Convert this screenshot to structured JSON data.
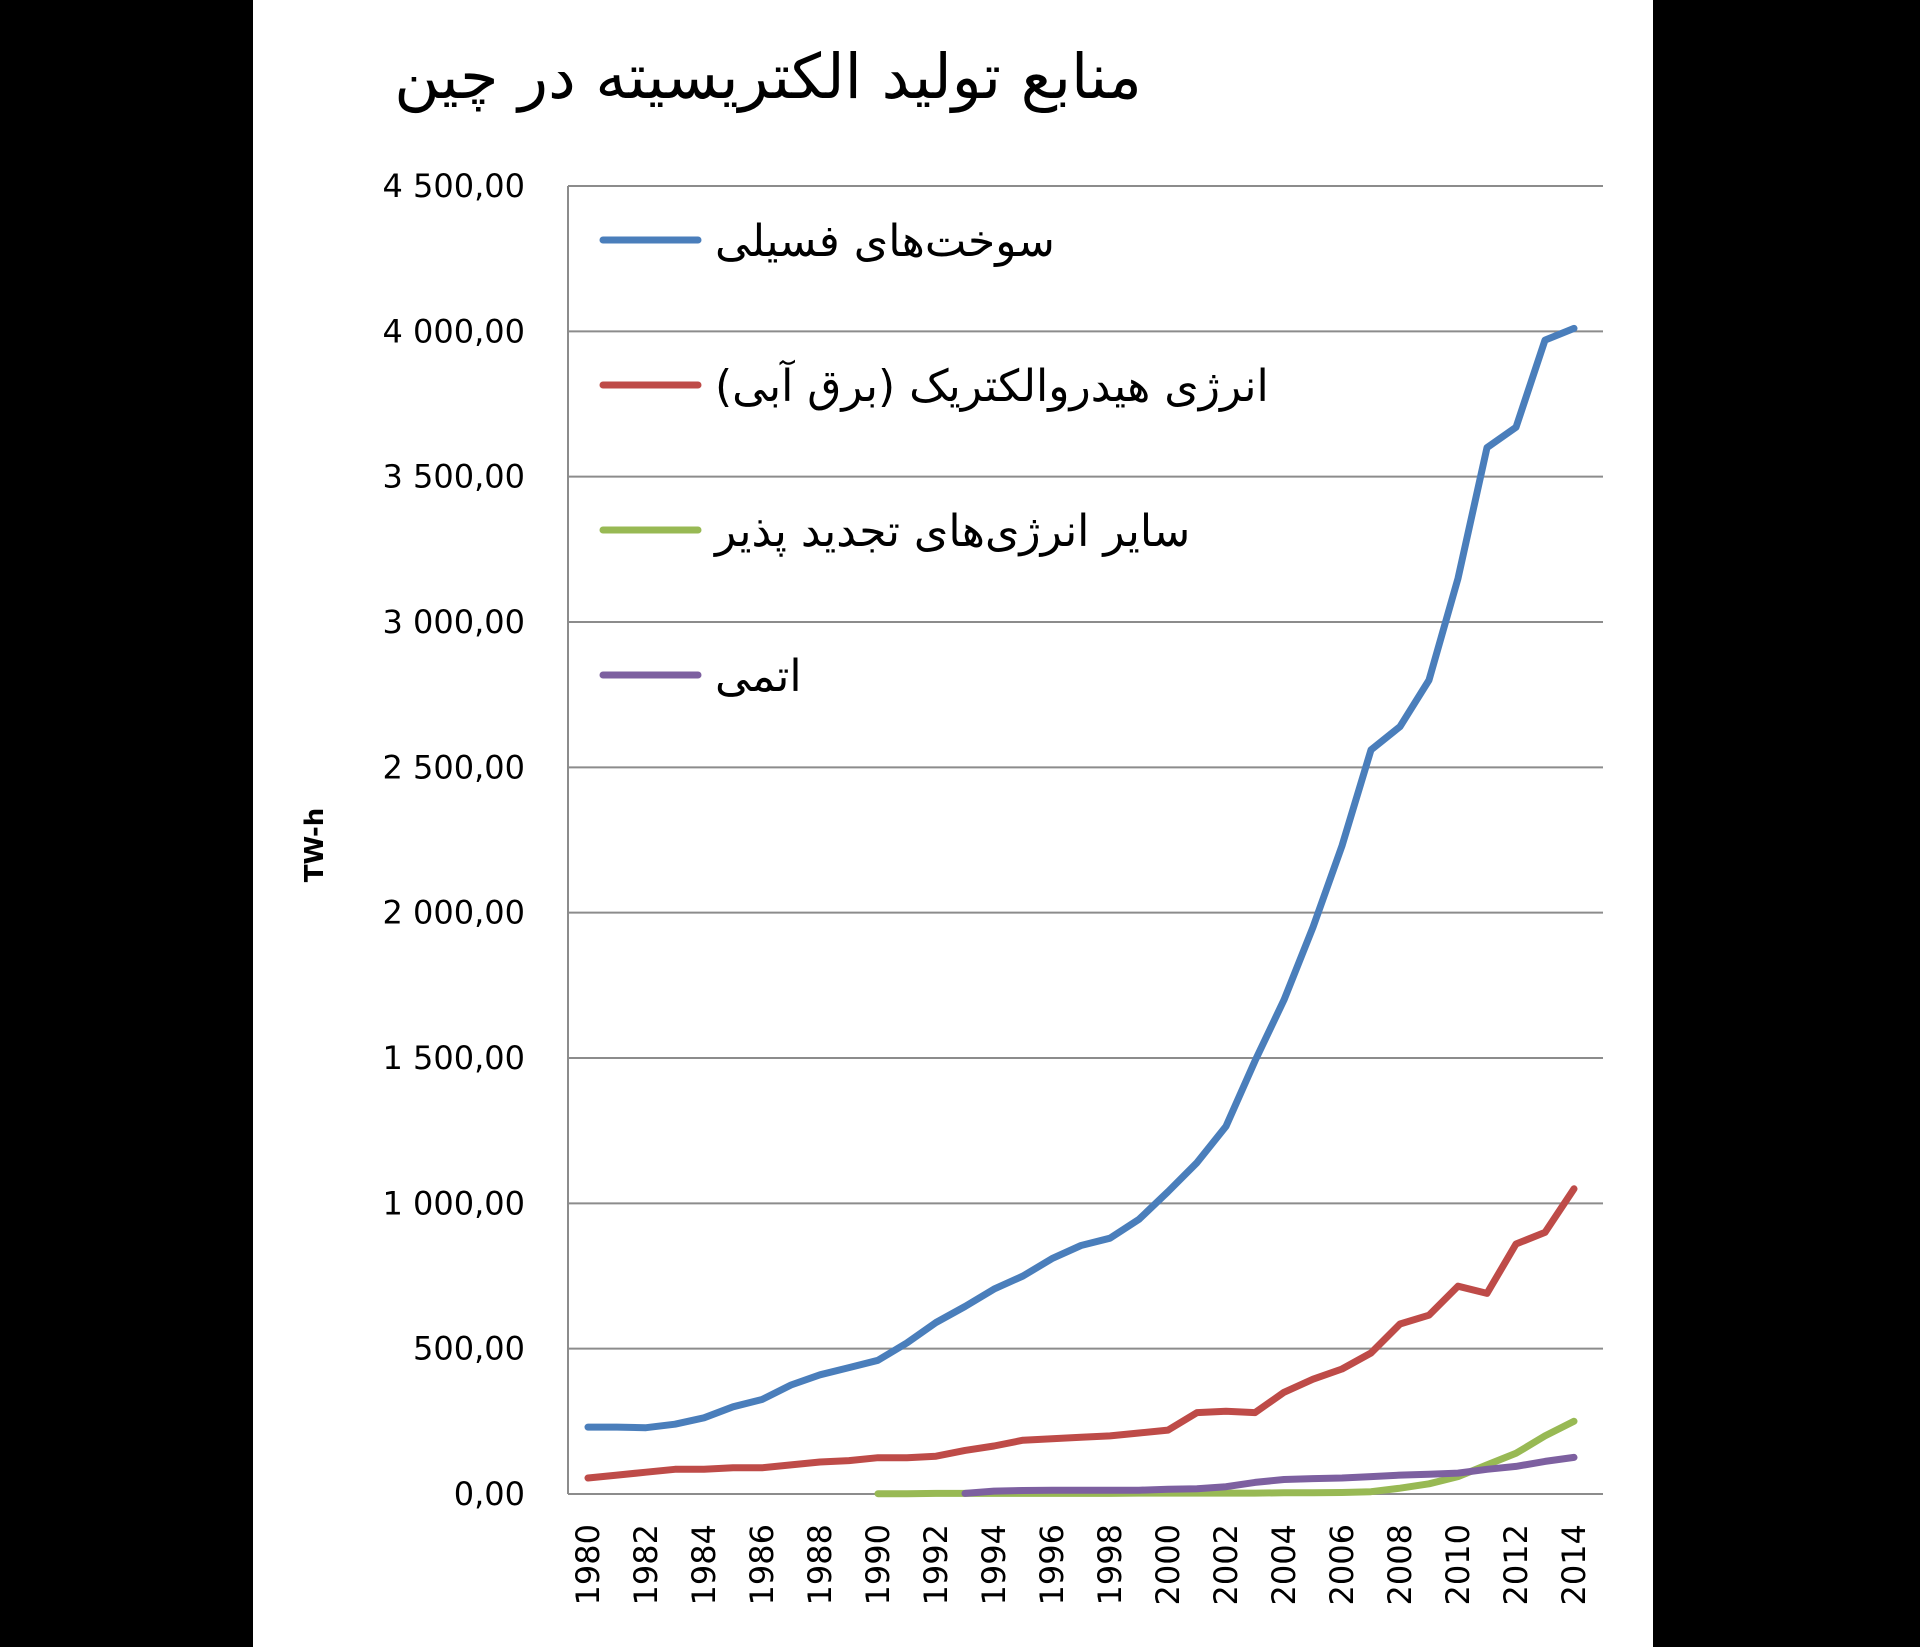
{
  "chart_data": {
    "type": "line",
    "title": "منابع تولید الکتریسیته در چین",
    "xlabel": "",
    "ylabel": "TW-h",
    "ylim": [
      0,
      4500
    ],
    "yticks": [
      0,
      500,
      1000,
      1500,
      2000,
      2500,
      3000,
      3500,
      4000,
      4500
    ],
    "ytick_labels": [
      "0,00",
      "500,00",
      "1 000,00",
      "1 500,00",
      "2 000,00",
      "2 500,00",
      "3 000,00",
      "3 500,00",
      "4 000,00",
      "4 500,00"
    ],
    "x": [
      1980,
      1981,
      1982,
      1983,
      1984,
      1985,
      1986,
      1987,
      1988,
      1989,
      1990,
      1991,
      1992,
      1993,
      1994,
      1995,
      1996,
      1997,
      1998,
      1999,
      2000,
      2001,
      2002,
      2003,
      2004,
      2005,
      2006,
      2007,
      2008,
      2009,
      2010,
      2011,
      2012,
      2013,
      2014
    ],
    "xtick_labels": [
      "1980",
      "1982",
      "1984",
      "1986",
      "1988",
      "1990",
      "1992",
      "1994",
      "1996",
      "1998",
      "2000",
      "2002",
      "2004",
      "2006",
      "2008",
      "2010",
      "2012",
      "2014"
    ],
    "grid": true,
    "legend_position": "top-left",
    "series": [
      {
        "name": "سوخت‌های فسیلی",
        "color": "#4a7ebb",
        "values": [
          230,
          230,
          228,
          240,
          262,
          300,
          325,
          375,
          410,
          435,
          460,
          520,
          590,
          645,
          705,
          750,
          810,
          855,
          880,
          945,
          1040,
          1140,
          1265,
          1490,
          1700,
          1950,
          2230,
          2560,
          2640,
          2800,
          3150,
          3600,
          3670,
          3970,
          4010
        ]
      },
      {
        "name": "انرژی هیدروالکتریک (برق آبی)",
        "color": "#be4b48",
        "values": [
          55,
          65,
          75,
          85,
          85,
          90,
          90,
          100,
          110,
          115,
          125,
          125,
          130,
          150,
          165,
          185,
          190,
          195,
          200,
          210,
          220,
          280,
          285,
          280,
          350,
          395,
          430,
          485,
          585,
          615,
          715,
          690,
          860,
          900,
          1050
        ]
      },
      {
        "name": "سایر انرژی‌های تجدید پذیر",
        "color": "#98b954",
        "values": [
          null,
          null,
          null,
          null,
          null,
          null,
          null,
          null,
          null,
          null,
          1,
          1,
          2,
          2,
          2,
          2,
          2,
          2,
          2,
          3,
          3,
          3,
          3,
          3,
          4,
          4,
          5,
          8,
          20,
          35,
          60,
          100,
          140,
          200,
          250
        ]
      },
      {
        "name": "اتمی",
        "color": "#7d60a0",
        "values": [
          null,
          null,
          null,
          null,
          null,
          null,
          null,
          null,
          null,
          null,
          null,
          null,
          null,
          2,
          10,
          12,
          13,
          13,
          13,
          13,
          16,
          18,
          25,
          40,
          50,
          53,
          55,
          60,
          65,
          68,
          72,
          85,
          95,
          112,
          126
        ]
      }
    ]
  }
}
